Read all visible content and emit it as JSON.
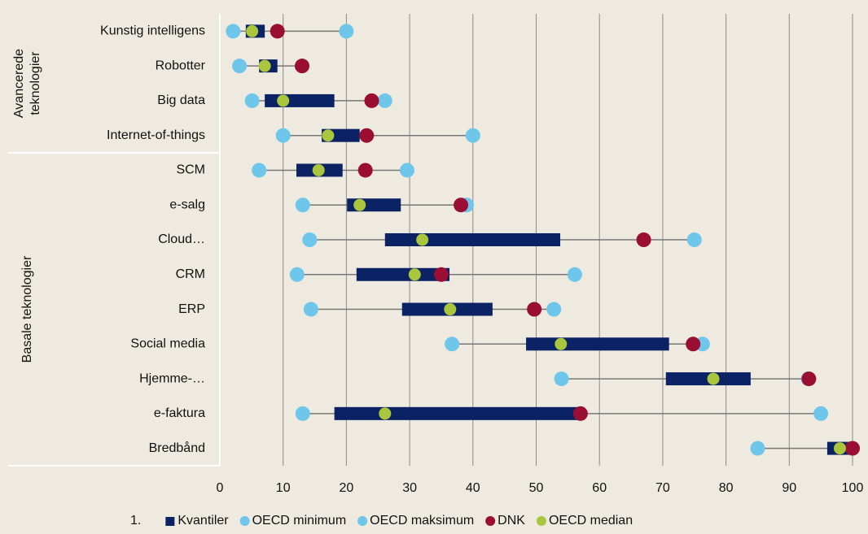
{
  "chart_data": {
    "type": "range",
    "orientation": "horizontal",
    "groups": [
      {
        "label": [
          "Avancerede",
          "teknologier"
        ],
        "categories": [
          "Kunstig intelligens",
          "Robotter",
          "Big data",
          "Internet-of-things"
        ]
      },
      {
        "label": [
          "Basale teknologier"
        ],
        "categories": [
          "SCM",
          "e-salg",
          "Cloud…",
          "CRM",
          "ERP",
          "Social media",
          "Hjemme-…",
          "e-faktura",
          "Bredbånd"
        ]
      }
    ],
    "series": [
      {
        "name": "Kvantiler",
        "color": "#0b2265",
        "values": [
          [
            4.1,
            7.1
          ],
          [
            6.2,
            9.1
          ],
          [
            7.1,
            18.1
          ],
          [
            16.1,
            22.1
          ],
          [
            12.1,
            19.4
          ],
          [
            20.1,
            28.6
          ],
          [
            26.1,
            53.8
          ],
          [
            21.6,
            36.3
          ],
          [
            28.8,
            43.1
          ],
          [
            48.4,
            71
          ],
          [
            70.5,
            83.9
          ],
          [
            18.1,
            56.6
          ],
          [
            96,
            99.7
          ]
        ]
      },
      {
        "name": "OECD minimum",
        "color": "#6ec6ea",
        "values": [
          2.1,
          3.1,
          5.1,
          10,
          6.2,
          13.1,
          14.2,
          12.2,
          14.4,
          36.7,
          54,
          13.1,
          85
        ]
      },
      {
        "name": "OECD maksimum",
        "color": "#6ec6ea",
        "values": [
          20,
          13,
          26.1,
          40,
          29.6,
          39,
          75,
          56.1,
          52.8,
          76.3,
          93,
          95,
          100
        ]
      },
      {
        "name": "DNK",
        "color": "#9b0e34",
        "values": [
          9.1,
          13,
          24,
          23.2,
          23,
          38.1,
          67,
          35,
          49.7,
          74.8,
          93.1,
          57,
          100
        ]
      },
      {
        "name": "OECD median",
        "color": "#a9c63c",
        "values": [
          5.1,
          7.1,
          10,
          17.1,
          15.6,
          22.1,
          32,
          30.8,
          36.4,
          53.9,
          78,
          26.1,
          98
        ]
      }
    ],
    "xlim": [
      0,
      100
    ],
    "xticks": [
      0,
      10,
      20,
      30,
      40,
      50,
      60,
      70,
      80,
      90,
      100
    ],
    "grid": true,
    "legend_prefix": "1.",
    "legend": "bottom"
  }
}
